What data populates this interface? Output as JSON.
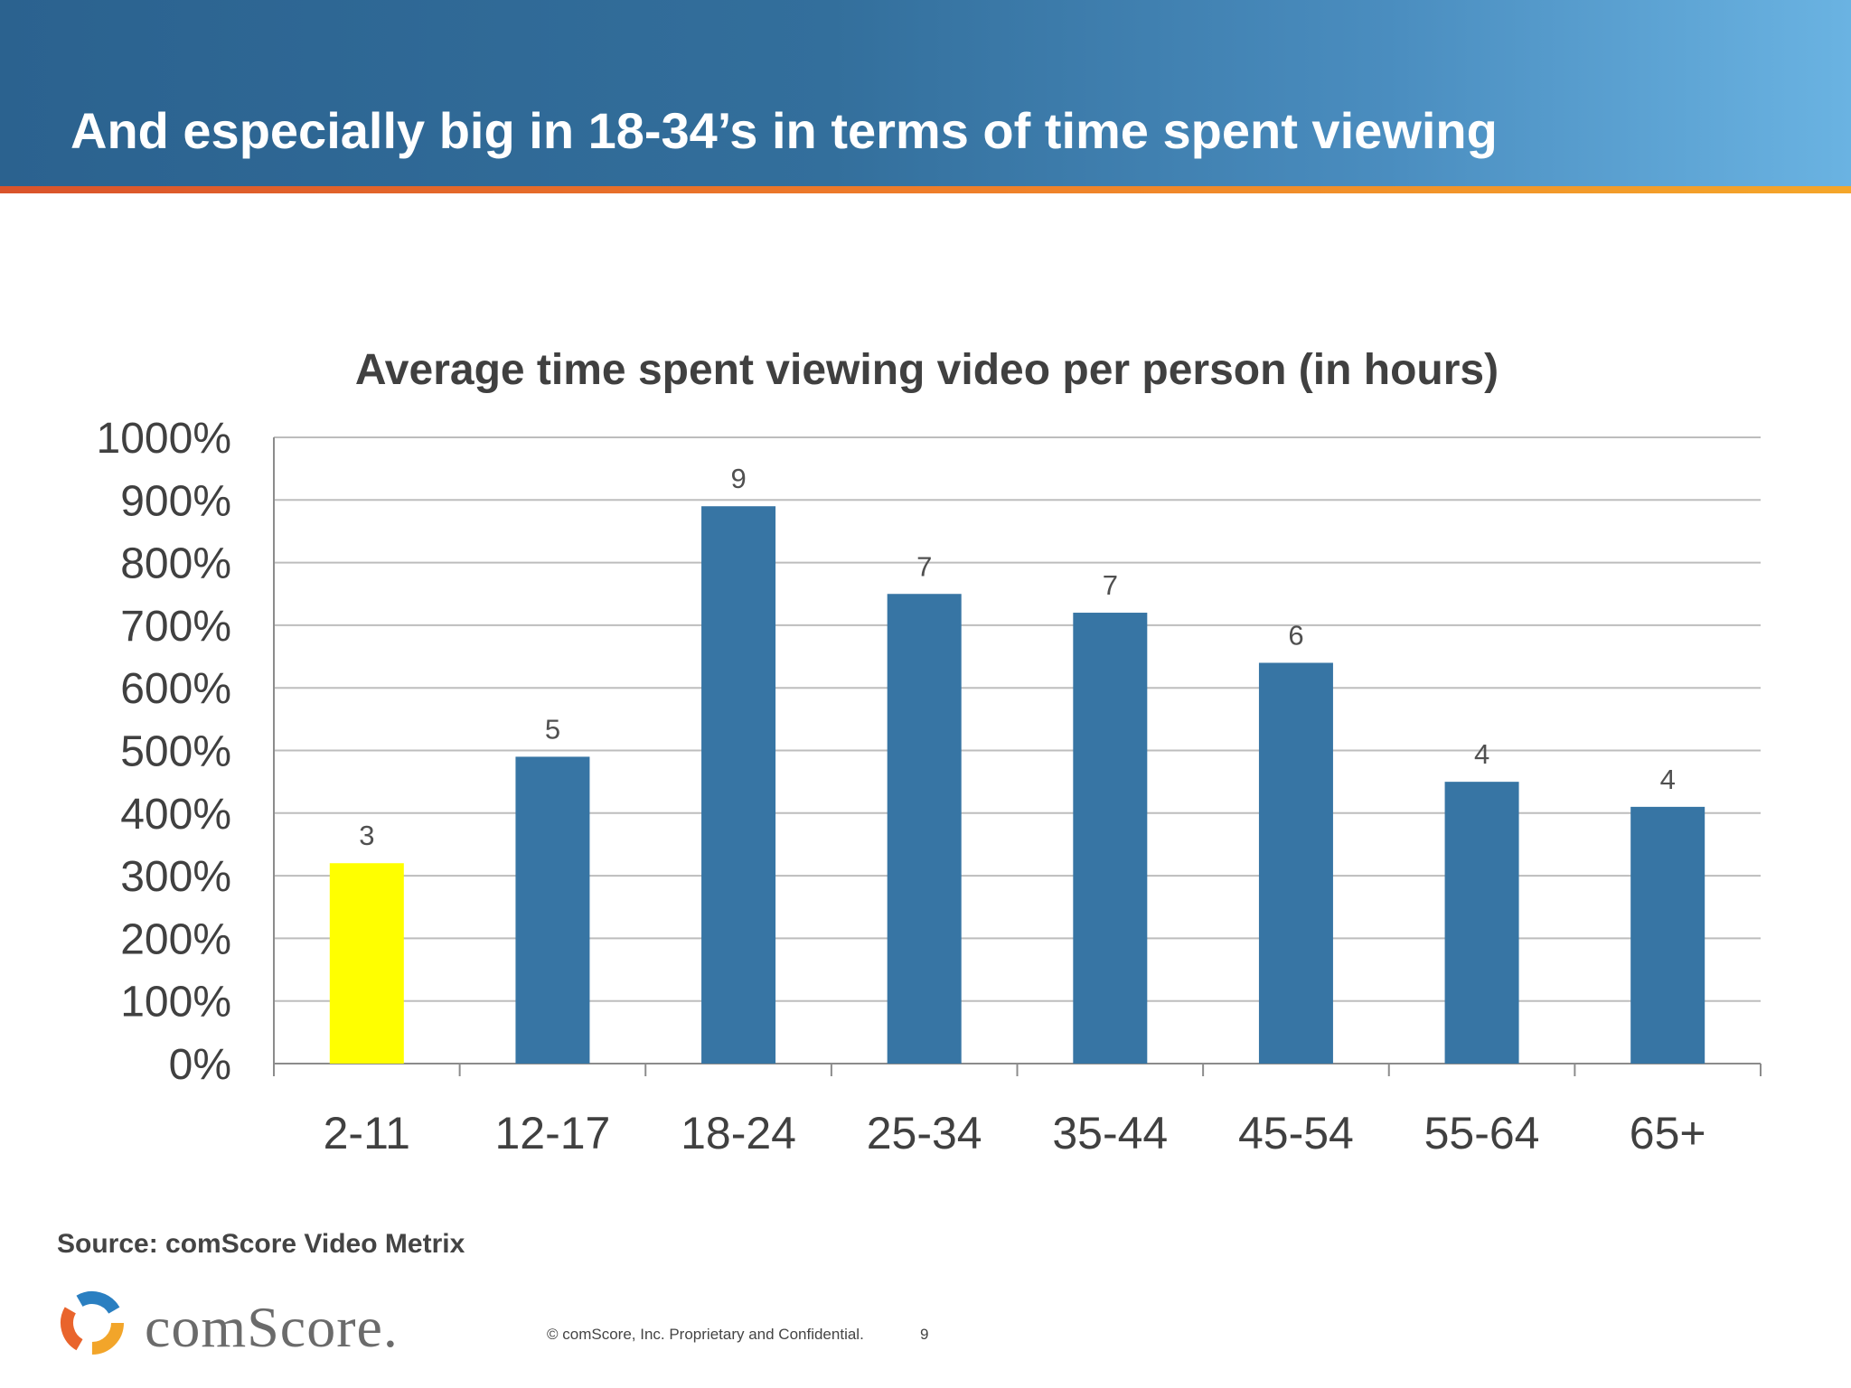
{
  "slide": {
    "title": "And especially big in 18-34’s in terms of time spent viewing",
    "source": "Source: comScore Video Metrix",
    "copyright": "© comScore, Inc.  Proprietary and Confidential.",
    "page_number": "9",
    "brand": "comScore."
  },
  "colors": {
    "header": "#336f9c",
    "bar": "#3775a4",
    "highlight": "#ffff00"
  },
  "chart_data": {
    "type": "bar",
    "title": "Average time spent viewing video per person (in hours)",
    "categories": [
      "2-11",
      "12-17",
      "18-24",
      "25-34",
      "35-44",
      "45-54",
      "55-64",
      "65+"
    ],
    "values": [
      3.2,
      4.9,
      8.9,
      7.5,
      7.2,
      6.4,
      4.5,
      4.1
    ],
    "data_labels": [
      "3",
      "5",
      "9",
      "7",
      "7",
      "6",
      "4",
      "4"
    ],
    "highlight_index": 0,
    "y_ticks": [
      "0%",
      "100%",
      "200%",
      "300%",
      "400%",
      "500%",
      "600%",
      "700%",
      "800%",
      "900%",
      "1000%"
    ],
    "ylim": [
      0,
      10
    ],
    "grid": true,
    "legend": "none"
  }
}
